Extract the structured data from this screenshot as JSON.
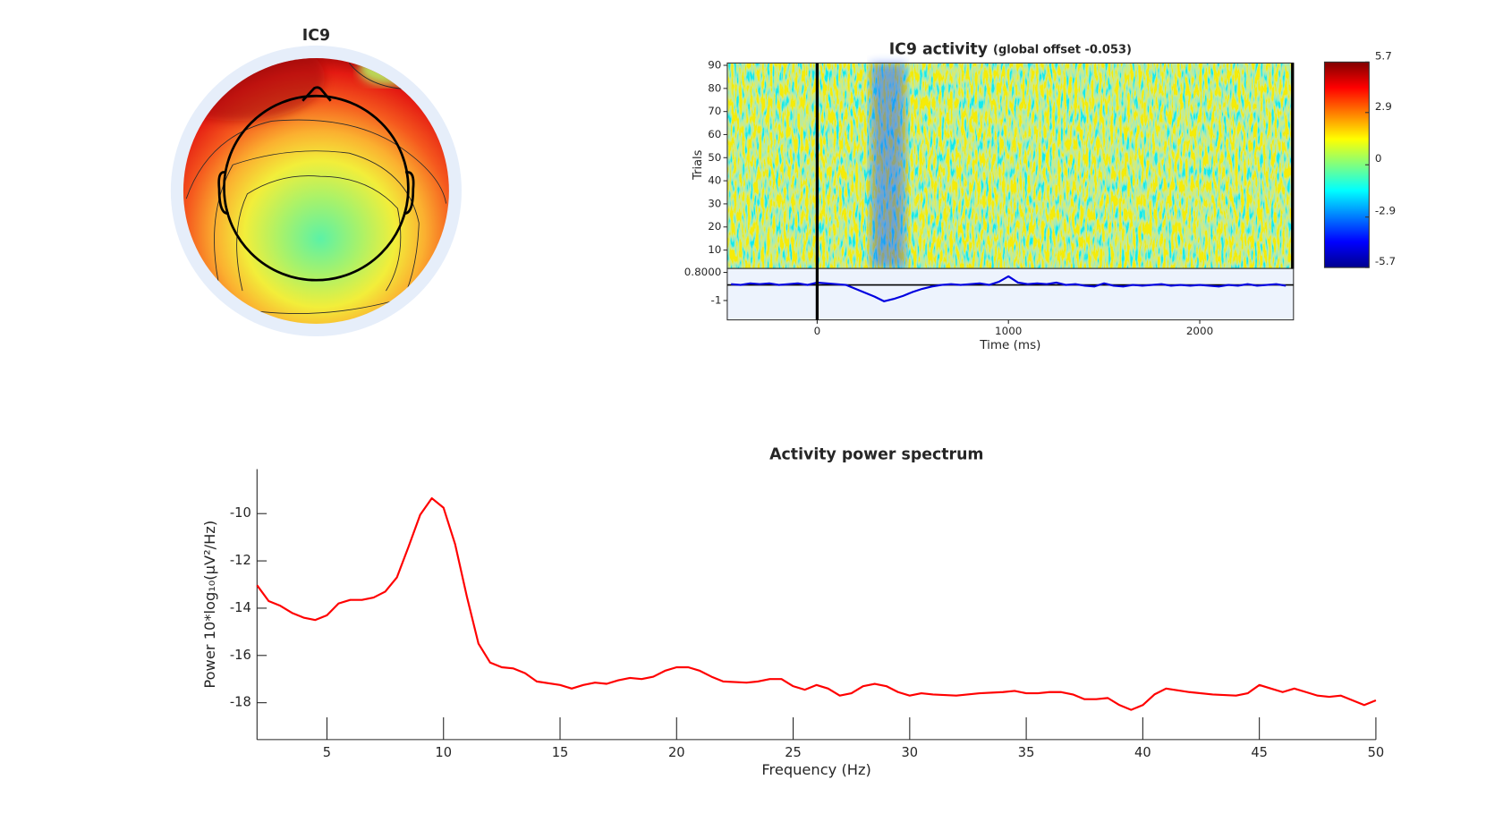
{
  "chart_data": [
    {
      "type": "topoplot",
      "title": "IC9"
    },
    {
      "type": "image",
      "title": "IC9 activity",
      "subtitle": "(global offset -0.053)",
      "ylabel": "Trials",
      "ylim": [
        2,
        91
      ],
      "yticks": [
        10,
        20,
        30,
        40,
        50,
        60,
        70,
        80,
        90
      ],
      "clim": [
        -5.7,
        5.7
      ],
      "cticks": [
        5.7,
        2.9,
        0,
        -2.9,
        -5.7
      ]
    },
    {
      "type": "line",
      "xlabel": "Time (ms)",
      "color": "#0000e0",
      "xlim": [
        -470,
        2490
      ],
      "xticks": [
        0,
        1000,
        2000
      ],
      "ylim": [
        -2.24,
        1.05
      ],
      "yticks": [
        {
          "value": 0.8,
          "label": "0.8000"
        },
        -1
      ],
      "x": [
        -450,
        -400,
        -350,
        -300,
        -250,
        -200,
        -150,
        -100,
        -50,
        0,
        50,
        100,
        150,
        200,
        250,
        300,
        350,
        400,
        450,
        500,
        550,
        600,
        650,
        700,
        750,
        800,
        850,
        900,
        950,
        1000,
        1050,
        1100,
        1150,
        1200,
        1250,
        1300,
        1350,
        1400,
        1450,
        1500,
        1550,
        1600,
        1650,
        1700,
        1750,
        1800,
        1850,
        1900,
        1950,
        2000,
        2050,
        2100,
        2150,
        2200,
        2250,
        2300,
        2350,
        2400,
        2450
      ],
      "values": [
        0.05,
        0.0,
        0.1,
        0.05,
        0.1,
        0.0,
        0.05,
        0.1,
        0.0,
        0.15,
        0.1,
        0.05,
        0.0,
        -0.25,
        -0.5,
        -0.75,
        -1.05,
        -0.9,
        -0.7,
        -0.45,
        -0.25,
        -0.1,
        0.0,
        0.05,
        0.0,
        0.05,
        0.1,
        0.0,
        0.2,
        0.55,
        0.15,
        0.05,
        0.1,
        0.05,
        0.15,
        0.0,
        0.05,
        -0.05,
        -0.1,
        0.1,
        -0.05,
        -0.1,
        0.0,
        -0.05,
        0.0,
        0.05,
        -0.05,
        0.0,
        -0.05,
        0.0,
        -0.05,
        -0.1,
        0.0,
        -0.05,
        0.05,
        -0.05,
        0.0,
        0.05,
        -0.05
      ]
    },
    {
      "type": "line",
      "title": "Activity power spectrum",
      "xlabel": "Frequency (Hz)",
      "ylabel": "Power 10*log₁₀(μV²/Hz)",
      "color": "#ff0000",
      "xlim": [
        2,
        50
      ],
      "xticks": [
        5,
        10,
        15,
        20,
        25,
        30,
        35,
        40,
        45,
        50
      ],
      "ylim": [
        -19.56,
        -8.12
      ],
      "yticks": [
        -10,
        -12,
        -14,
        -16,
        -18
      ],
      "x": [
        2,
        2.5,
        3,
        3.5,
        4,
        4.5,
        5,
        5.5,
        6,
        6.5,
        7,
        7.5,
        8,
        8.5,
        9,
        9.5,
        10,
        10.5,
        11,
        11.5,
        12,
        12.5,
        13,
        13.5,
        14,
        15,
        15.5,
        16,
        16.5,
        17,
        17.5,
        18,
        18.5,
        19,
        19.5,
        20,
        20.5,
        21,
        21.5,
        22,
        23,
        23.5,
        24,
        24.5,
        25,
        25.5,
        26,
        26.5,
        27,
        27.5,
        28,
        28.5,
        29,
        29.5,
        30,
        30.5,
        31,
        32,
        33,
        34,
        34.5,
        35,
        35.5,
        36,
        36.5,
        37,
        37.5,
        38,
        38.5,
        39,
        39.5,
        40,
        40.5,
        41,
        42,
        43,
        44,
        44.5,
        45,
        45.5,
        46,
        46.5,
        47,
        47.5,
        48,
        48.5,
        49,
        49.5,
        50
      ],
      "values": [
        -13.03,
        -13.7,
        -13.9,
        -14.2,
        -14.4,
        -14.5,
        -14.3,
        -13.8,
        -13.65,
        -13.65,
        -13.55,
        -13.3,
        -12.7,
        -11.4,
        -10.05,
        -9.35,
        -9.75,
        -11.3,
        -13.5,
        -15.5,
        -16.3,
        -16.5,
        -16.55,
        -16.75,
        -17.1,
        -17.25,
        -17.4,
        -17.25,
        -17.15,
        -17.2,
        -17.05,
        -16.95,
        -17.0,
        -16.9,
        -16.65,
        -16.5,
        -16.5,
        -16.65,
        -16.9,
        -17.1,
        -17.15,
        -17.1,
        -17.0,
        -17.0,
        -17.3,
        -17.45,
        -17.25,
        -17.4,
        -17.7,
        -17.6,
        -17.3,
        -17.2,
        -17.3,
        -17.55,
        -17.7,
        -17.6,
        -17.65,
        -17.7,
        -17.6,
        -17.55,
        -17.5,
        -17.6,
        -17.6,
        -17.55,
        -17.55,
        -17.65,
        -17.85,
        -17.85,
        -17.8,
        -18.1,
        -18.3,
        -18.1,
        -17.65,
        -17.4,
        -17.55,
        -17.65,
        -17.7,
        -17.6,
        -17.25,
        -17.4,
        -17.55,
        -17.4,
        -17.55,
        -17.7,
        -17.75,
        -17.7,
        -17.9,
        -18.1,
        -17.9
      ]
    }
  ]
}
